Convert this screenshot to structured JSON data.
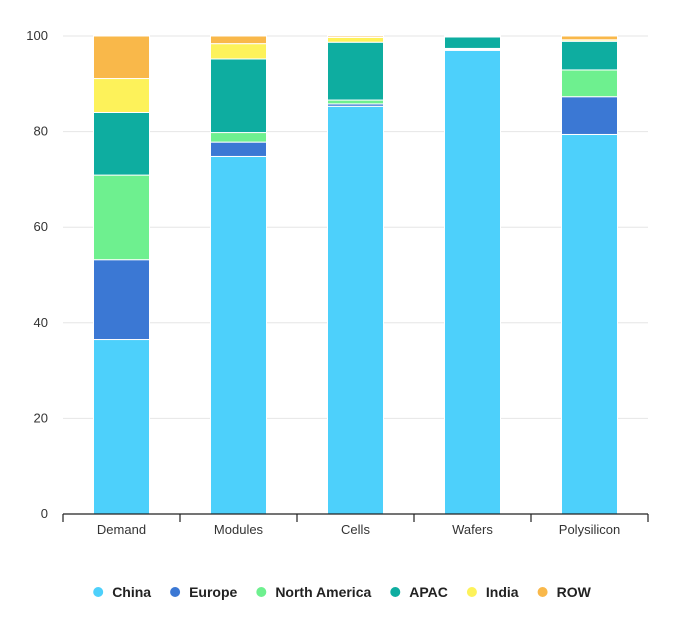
{
  "chart_data": {
    "type": "bar",
    "stacked": true,
    "title": "",
    "xlabel": "",
    "ylabel": "",
    "ylim": [
      0,
      100
    ],
    "yticks": [
      0,
      20,
      40,
      60,
      80,
      100
    ],
    "grid": true,
    "legend_position": "bottom",
    "categories": [
      "Demand",
      "Modules",
      "Cells",
      "Wafers",
      "Polysilicon"
    ],
    "series": [
      {
        "name": "China",
        "color": "#4dd0fb",
        "values": [
          36.5,
          74.8,
          85.3,
          97,
          79.4
        ]
      },
      {
        "name": "Europe",
        "color": "#3b78d4",
        "values": [
          16.7,
          3,
          0.5,
          0.2,
          7.9
        ]
      },
      {
        "name": "North America",
        "color": "#6ef08f",
        "values": [
          17.7,
          2,
          0.8,
          0.2,
          5.6
        ]
      },
      {
        "name": "APAC",
        "color": "#0eada0",
        "values": [
          13.1,
          15.4,
          12.1,
          2.4,
          6
        ]
      },
      {
        "name": "India",
        "color": "#fdf25a",
        "values": [
          7.1,
          3.2,
          1,
          0.1,
          0.3
        ]
      },
      {
        "name": "ROW",
        "color": "#f9b84a",
        "values": [
          8.9,
          1.6,
          0.3,
          0.1,
          0.8
        ]
      }
    ]
  }
}
